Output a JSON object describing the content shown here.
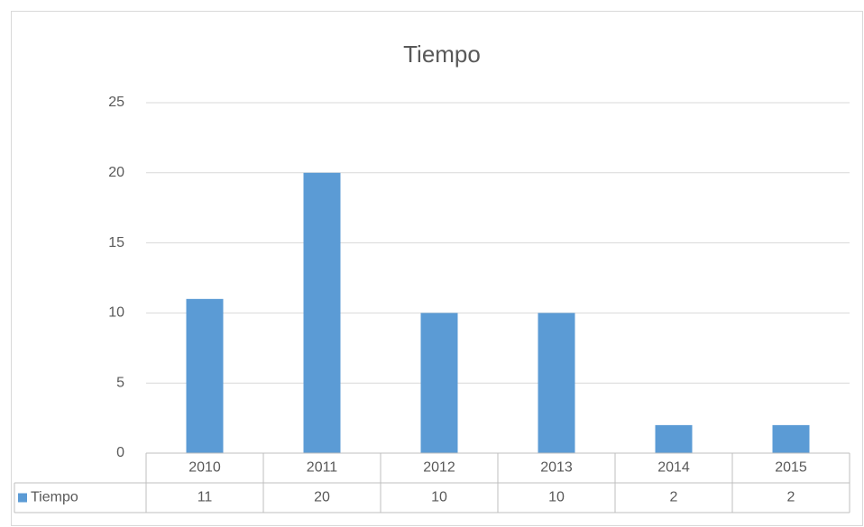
{
  "chart_data": {
    "type": "bar",
    "title": "Tiempo",
    "categories": [
      "2010",
      "2011",
      "2012",
      "2013",
      "2014",
      "2015"
    ],
    "series": [
      {
        "name": "Tiempo",
        "color": "#5b9bd5",
        "values": [
          11,
          20,
          10,
          10,
          2,
          2
        ]
      }
    ],
    "ylim": [
      0,
      25
    ],
    "yticks": [
      0,
      5,
      10,
      15,
      20,
      25
    ],
    "grid": true
  }
}
